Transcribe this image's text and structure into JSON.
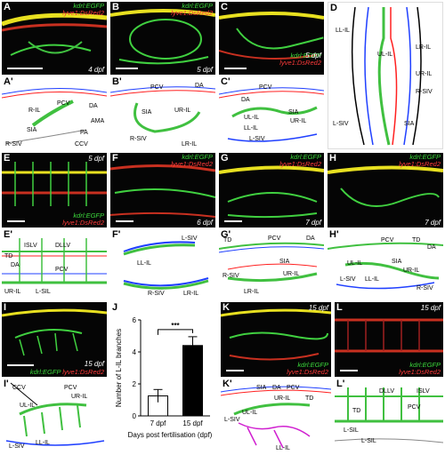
{
  "figure": {
    "legend_green": "kdrl:EGFP",
    "legend_red": "lyve1:DsRed2",
    "panels": {
      "A": {
        "label": "A",
        "age": "4 dpf"
      },
      "B": {
        "label": "B",
        "age": "5 dpf"
      },
      "C": {
        "label": "C",
        "age": "5 dpf"
      },
      "D": {
        "label": "D",
        "vessels": [
          "LL-IL",
          "UL-IL",
          "LR-IL",
          "UR-IL",
          "R-SIV",
          "L-SIV",
          "SIA"
        ]
      },
      "A2": {
        "label": "A'",
        "vessels": [
          "PCV",
          "DA",
          "R-IL",
          "AMA",
          "SIA",
          "PA",
          "R-SIV",
          "CCV"
        ]
      },
      "B2": {
        "label": "B'",
        "vessels": [
          "PCV",
          "DA",
          "SIA",
          "UR-IL",
          "R-SIV",
          "LR-IL"
        ]
      },
      "C2": {
        "label": "C'",
        "vessels": [
          "PCV",
          "DA",
          "UL-IL",
          "SIA",
          "UR-IL",
          "LL-IL",
          "L-SIV"
        ]
      },
      "E": {
        "label": "E",
        "age": "5 dpf"
      },
      "F": {
        "label": "F",
        "age": "6 dpf"
      },
      "G": {
        "label": "G",
        "age": "7 dpf"
      },
      "H": {
        "label": "H",
        "age": "7 dpf"
      },
      "E2": {
        "label": "E'",
        "vessels": [
          "ISLV",
          "DLLV",
          "TD",
          "DA",
          "PCV",
          "UR-IL",
          "L-SIL"
        ]
      },
      "F2": {
        "label": "F'",
        "vessels": [
          "L-SIV",
          "LL-IL",
          "R-SIV",
          "LR-IL"
        ]
      },
      "G2": {
        "label": "G'",
        "vessels": [
          "TD",
          "PCV",
          "DA",
          "SIA",
          "R-SIV",
          "UR-IL",
          "LR-IL"
        ]
      },
      "H2": {
        "label": "H'",
        "vessels": [
          "PCV",
          "TD",
          "DA",
          "UL-IL",
          "SIA",
          "UR-IL",
          "L-SIV",
          "LL-IL",
          "R-SIV"
        ]
      },
      "I": {
        "label": "I",
        "age": "15 dpf"
      },
      "J": {
        "label": "J"
      },
      "K": {
        "label": "K",
        "age": "15 dpf"
      },
      "L": {
        "label": "L",
        "age": "15 dpf"
      },
      "I2": {
        "label": "I'",
        "vessels": [
          "CCV",
          "UL-IL",
          "PCV",
          "UR-IL",
          "L-SIV",
          "LL-IL"
        ]
      },
      "K2": {
        "label": "K'",
        "vessels": [
          "SIA",
          "DA",
          "PCV",
          "UR-IL",
          "TD",
          "UL-IL",
          "L-SIV",
          "LL-IL"
        ]
      },
      "L2": {
        "label": "L'",
        "vessels": [
          "TD",
          "DLLV",
          "ISLV",
          "PCV",
          "L-SIL",
          "L-SIL"
        ]
      }
    }
  },
  "chart_data": {
    "type": "bar",
    "categories": [
      "7 dpf",
      "15 dpf"
    ],
    "values": [
      1.25,
      4.4
    ],
    "errors": [
      0.4,
      0.55
    ],
    "ylabel": "Number of L-IL branches",
    "xlabel": "Days post fertilisation (dpf)",
    "ylim": [
      0,
      6
    ],
    "yticks": [
      0,
      2,
      4,
      6
    ],
    "significance": "***",
    "bar_colors": [
      "#ffffff",
      "#000000"
    ]
  }
}
